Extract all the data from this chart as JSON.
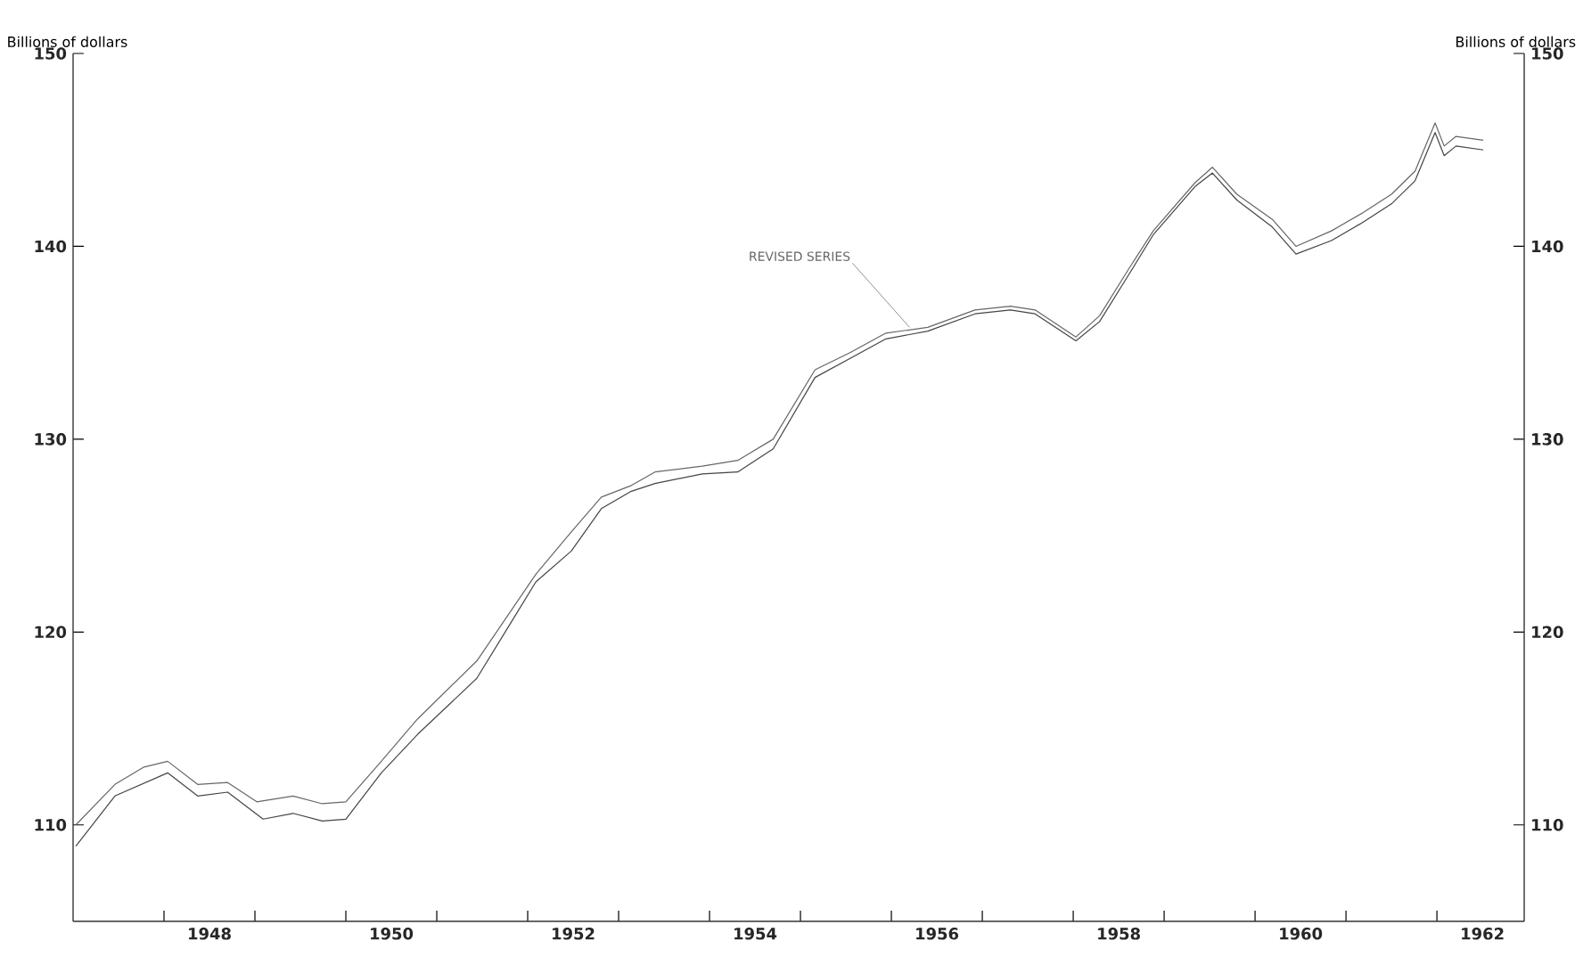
{
  "chart_data": {
    "type": "line",
    "ylabel": "Billions of dollars",
    "y2label": "Billions of dollars",
    "ylim": [
      105,
      150
    ],
    "yticks": [
      110,
      120,
      130,
      140,
      150
    ],
    "y2lim": [
      105,
      150
    ],
    "y2ticks": [
      110,
      120,
      130,
      140,
      150
    ],
    "xlim": [
      1947,
      1962.96
    ],
    "xticks": [
      {
        "value": 1948,
        "label": null
      },
      {
        "value": 1948.5,
        "label": "1948"
      },
      {
        "value": 1949,
        "label": null
      },
      {
        "value": 1950,
        "label": null
      },
      {
        "value": 1950.5,
        "label": "1950"
      },
      {
        "value": 1951,
        "label": null
      },
      {
        "value": 1952,
        "label": null
      },
      {
        "value": 1952.5,
        "label": "1952"
      },
      {
        "value": 1953,
        "label": null
      },
      {
        "value": 1954,
        "label": null
      },
      {
        "value": 1954.5,
        "label": "1954"
      },
      {
        "value": 1955,
        "label": null
      },
      {
        "value": 1956,
        "label": null
      },
      {
        "value": 1956.5,
        "label": "1956"
      },
      {
        "value": 1957,
        "label": null
      },
      {
        "value": 1958,
        "label": null
      },
      {
        "value": 1958.5,
        "label": "1958"
      },
      {
        "value": 1959,
        "label": null
      },
      {
        "value": 1960,
        "label": null
      },
      {
        "value": 1960.5,
        "label": "1960"
      },
      {
        "value": 1961,
        "label": null
      },
      {
        "value": 1962,
        "label": null
      },
      {
        "value": 1962.5,
        "label": "1962"
      }
    ],
    "grid": false,
    "marker": "none",
    "line_style": "solid",
    "series": [
      {
        "color": "#666666",
        "x": [
          1947.03,
          1947.46,
          1947.78,
          1948.04,
          1948.37,
          1948.7,
          1949.02,
          1949.42,
          1949.74,
          1950.0,
          1950.39,
          1950.79,
          1951.44,
          1951.83,
          1952.09,
          1952.48,
          1952.81,
          1953.14,
          1953.4,
          1953.92,
          1954.31,
          1954.7,
          1955.16,
          1955.55,
          1955.94,
          1956.4,
          1956.92,
          1957.31,
          1957.58,
          1958.03,
          1958.29,
          1958.62,
          1958.88,
          1959.34,
          1959.53,
          1959.8,
          1960.19,
          1960.45,
          1960.84,
          1961.17,
          1961.5,
          1961.76,
          1961.98,
          1962.08,
          1962.21,
          1962.51
        ],
        "values": [
          110.0,
          112.1,
          113.0,
          113.3,
          112.1,
          112.2,
          111.2,
          111.5,
          111.1,
          111.2,
          113.3,
          115.5,
          118.5,
          121.2,
          123.0,
          125.2,
          127.0,
          127.6,
          128.3,
          128.6,
          128.9,
          130.0,
          133.6,
          134.5,
          135.5,
          135.8,
          136.7,
          136.9,
          136.7,
          135.3,
          136.4,
          138.9,
          140.8,
          143.3,
          144.1,
          142.7,
          141.4,
          140.0,
          140.8,
          141.7,
          142.7,
          143.9,
          146.4,
          145.2,
          145.7,
          145.5
        ]
      },
      {
        "color": "#444444",
        "x": [
          1947.03,
          1947.46,
          1948.04,
          1948.37,
          1948.7,
          1949.09,
          1949.42,
          1949.74,
          1950.0,
          1950.39,
          1950.79,
          1951.44,
          1951.83,
          1952.09,
          1952.48,
          1952.81,
          1953.14,
          1953.4,
          1953.92,
          1954.31,
          1954.7,
          1955.16,
          1955.55,
          1955.94,
          1956.4,
          1956.92,
          1957.31,
          1957.58,
          1958.03,
          1958.29,
          1958.62,
          1958.88,
          1959.34,
          1959.53,
          1959.8,
          1960.19,
          1960.45,
          1960.84,
          1961.17,
          1961.5,
          1961.76,
          1961.98,
          1962.08,
          1962.21,
          1962.51
        ],
        "values": [
          108.9,
          111.5,
          112.7,
          111.5,
          111.7,
          110.3,
          110.6,
          110.2,
          110.3,
          112.7,
          114.7,
          117.6,
          120.6,
          122.6,
          124.2,
          126.4,
          127.3,
          127.7,
          128.2,
          128.3,
          129.5,
          133.2,
          134.2,
          135.2,
          135.6,
          136.5,
          136.7,
          136.5,
          135.1,
          136.1,
          138.6,
          140.6,
          143.1,
          143.8,
          142.4,
          141.0,
          139.6,
          140.3,
          141.2,
          142.2,
          143.4,
          145.9,
          144.7,
          145.2,
          145.0
        ]
      }
    ],
    "annotations": [
      {
        "text": "REVISED SERIES",
        "x": 1956.2,
        "y": 135.8
      }
    ]
  }
}
